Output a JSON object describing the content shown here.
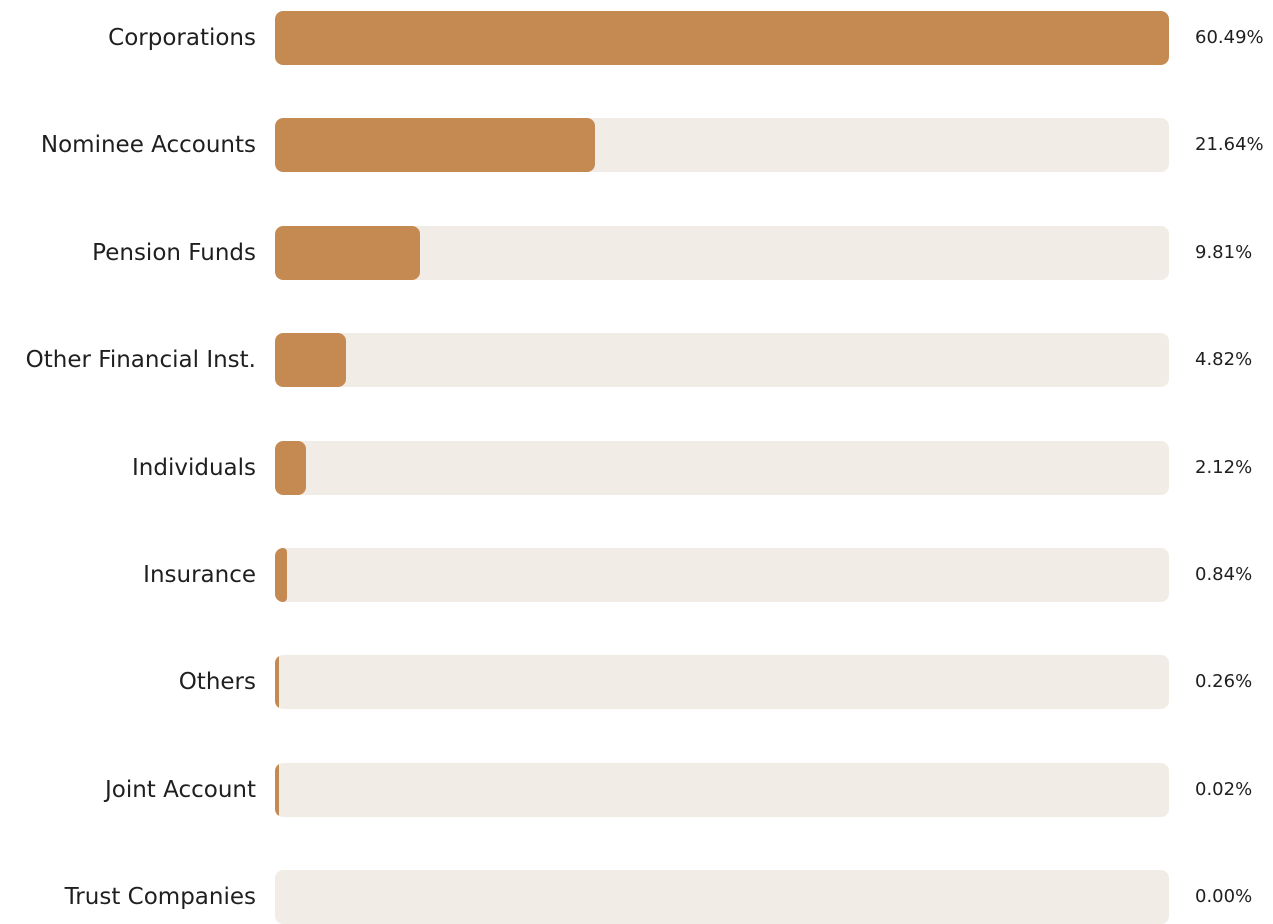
{
  "chart_data": {
    "type": "bar",
    "orientation": "horizontal",
    "categories": [
      "Corporations",
      "Nominee Accounts",
      "Pension Funds",
      "Other Financial Inst.",
      "Individuals",
      "Insurance",
      "Others",
      "Joint Account",
      "Trust Companies"
    ],
    "values": [
      60.49,
      21.64,
      9.81,
      4.82,
      2.12,
      0.84,
      0.26,
      0.02,
      0.0
    ],
    "value_labels": [
      "60.49%",
      "21.64%",
      "9.81%",
      "4.82%",
      "2.12%",
      "0.84%",
      "0.26%",
      "0.02%",
      "0.00%"
    ],
    "xlim": [
      0,
      60.49
    ],
    "colors": {
      "bar": "#c48a52",
      "track": "#f1ede6",
      "text": "#1f1f1f"
    },
    "grid": false,
    "legend": "none"
  }
}
